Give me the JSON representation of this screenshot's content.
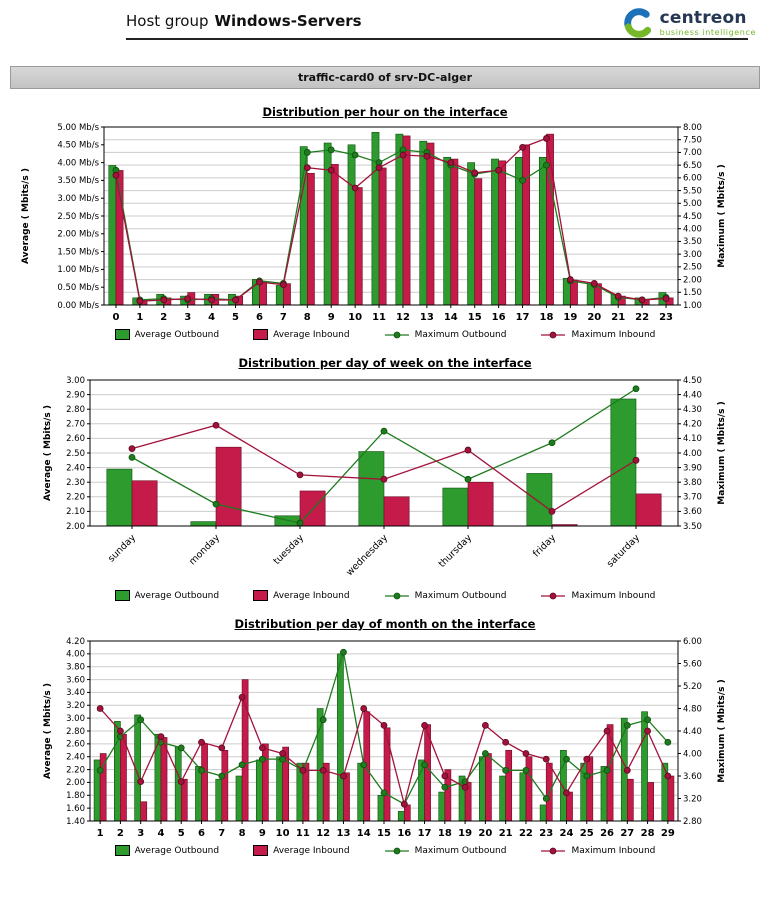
{
  "header": {
    "title_prefix": "Host group",
    "title_name": "Windows-Servers",
    "logo": {
      "brand": "centreon",
      "tagline": "business intelligence"
    }
  },
  "card": {
    "title": "traffic-card0 of srv-DC-alger"
  },
  "colors": {
    "grid": "#cccccc",
    "avg_out": "#2e9b2e",
    "avg_in": "#c41b4b",
    "max_out": "#1e7b1e",
    "max_in": "#a3123b"
  },
  "chart_data": [
    {
      "name": "per-hour",
      "type": "bar",
      "title": "Distribution per hour on the interface",
      "rotate_labels": false,
      "categories": [
        "0",
        "1",
        "2",
        "3",
        "4",
        "5",
        "6",
        "7",
        "8",
        "9",
        "10",
        "11",
        "12",
        "13",
        "14",
        "15",
        "16",
        "17",
        "18",
        "19",
        "20",
        "21",
        "22",
        "23"
      ],
      "left_axis": {
        "label": "Average ( Mbits/s )",
        "min": 0,
        "max": 5,
        "step": 0.5,
        "decimals": 2,
        "suffix": " Mb/s"
      },
      "right_axis": {
        "label": "Maximum ( Mbits/s )",
        "min": 1,
        "max": 8,
        "step": 0.5,
        "decimals": 2
      },
      "series": [
        {
          "name": "Average Outbound",
          "type": "bar",
          "axis": "left",
          "color": "#2e9b2e",
          "border": "#134d13",
          "values": [
            3.92,
            0.2,
            0.3,
            0.25,
            0.3,
            0.3,
            0.72,
            0.55,
            4.45,
            4.55,
            4.5,
            4.85,
            4.8,
            4.6,
            4.15,
            4.0,
            4.1,
            4.15,
            4.15,
            0.75,
            0.6,
            0.3,
            0.2,
            0.35
          ]
        },
        {
          "name": "Average Inbound",
          "type": "bar",
          "axis": "left",
          "color": "#c41b4b",
          "border": "#6b0b26",
          "values": [
            3.78,
            0.15,
            0.2,
            0.35,
            0.3,
            0.25,
            0.65,
            0.6,
            3.7,
            3.95,
            3.3,
            3.85,
            4.75,
            4.55,
            4.1,
            3.55,
            4.05,
            4.5,
            4.8,
            0.7,
            0.6,
            0.25,
            0.15,
            0.2
          ]
        },
        {
          "name": "Maximum Outbound",
          "type": "line",
          "axis": "right",
          "color": "#1e7b1e",
          "edge": "#0c4f0c",
          "values": [
            6.3,
            1.2,
            1.25,
            1.2,
            1.25,
            1.2,
            1.95,
            1.85,
            7.0,
            7.1,
            6.9,
            6.6,
            7.1,
            7.0,
            6.5,
            6.15,
            6.3,
            5.9,
            6.5,
            1.95,
            1.8,
            1.3,
            1.2,
            1.3
          ]
        },
        {
          "name": "Maximum Inbound",
          "type": "line",
          "axis": "right",
          "color": "#a3123b",
          "edge": "#550a20",
          "values": [
            6.1,
            1.15,
            1.2,
            1.25,
            1.2,
            1.2,
            1.9,
            1.8,
            6.4,
            6.3,
            5.6,
            6.4,
            6.9,
            6.85,
            6.6,
            6.2,
            6.3,
            7.2,
            7.55,
            2.0,
            1.85,
            1.35,
            1.2,
            1.25
          ]
        }
      ]
    },
    {
      "name": "per-day-of-week",
      "type": "bar",
      "title": "Distribution per day of week on the interface",
      "rotate_labels": true,
      "categories": [
        "sunday",
        "monday",
        "tuesday",
        "wednesday",
        "thursday",
        "friday",
        "saturday"
      ],
      "left_axis": {
        "label": "Average ( Mbits/s )",
        "min": 2.0,
        "max": 3.0,
        "step": 0.1,
        "decimals": 2
      },
      "right_axis": {
        "label": "Maximum ( Mbits/s )",
        "min": 3.5,
        "max": 4.5,
        "step": 0.1,
        "decimals": 2
      },
      "series": [
        {
          "name": "Average Outbound",
          "type": "bar",
          "axis": "left",
          "color": "#2e9b2e",
          "border": "#134d13",
          "values": [
            2.39,
            2.03,
            2.07,
            2.51,
            2.26,
            2.36,
            2.87
          ]
        },
        {
          "name": "Average Inbound",
          "type": "bar",
          "axis": "left",
          "color": "#c41b4b",
          "border": "#6b0b26",
          "values": [
            2.31,
            2.54,
            2.24,
            2.2,
            2.3,
            2.01,
            2.22
          ]
        },
        {
          "name": "Maximum Outbound",
          "type": "line",
          "axis": "right",
          "color": "#1e7b1e",
          "edge": "#0c4f0c",
          "values": [
            3.97,
            3.65,
            3.52,
            4.15,
            3.82,
            4.07,
            4.44
          ]
        },
        {
          "name": "Maximum Inbound",
          "type": "line",
          "axis": "right",
          "color": "#a3123b",
          "edge": "#550a20",
          "values": [
            4.03,
            4.19,
            3.85,
            3.82,
            4.02,
            3.6,
            3.95
          ]
        }
      ]
    },
    {
      "name": "per-day-of-month",
      "type": "bar",
      "title": "Distribution per day of month on the interface",
      "rotate_labels": false,
      "categories": [
        "1",
        "2",
        "3",
        "4",
        "5",
        "6",
        "7",
        "8",
        "9",
        "10",
        "11",
        "12",
        "13",
        "14",
        "15",
        "16",
        "17",
        "18",
        "19",
        "20",
        "21",
        "22",
        "23",
        "24",
        "25",
        "26",
        "27",
        "28",
        "29"
      ],
      "left_axis": {
        "label": "Average ( Mbits/s )",
        "min": 1.4,
        "max": 4.2,
        "step": 0.2,
        "decimals": 2
      },
      "right_axis": {
        "label": "Maximum ( Mbits/s )",
        "min": 2.8,
        "max": 6.0,
        "step": 0.4,
        "decimals": 2
      },
      "series": [
        {
          "name": "Average Outbound",
          "type": "bar",
          "axis": "left",
          "color": "#2e9b2e",
          "border": "#134d13",
          "values": [
            2.35,
            2.95,
            3.05,
            2.75,
            2.55,
            2.25,
            2.05,
            2.1,
            2.35,
            2.4,
            2.3,
            3.15,
            4.0,
            2.3,
            1.8,
            1.55,
            2.35,
            1.85,
            2.1,
            2.4,
            2.1,
            2.15,
            1.65,
            2.5,
            2.3,
            2.25,
            3.0,
            3.1,
            2.3
          ]
        },
        {
          "name": "Average Inbound",
          "type": "bar",
          "axis": "left",
          "color": "#c41b4b",
          "border": "#6b0b26",
          "values": [
            2.45,
            2.75,
            1.7,
            2.7,
            2.05,
            2.6,
            2.5,
            3.6,
            2.6,
            2.55,
            2.3,
            2.3,
            2.15,
            3.1,
            2.85,
            1.65,
            2.9,
            2.2,
            2.0,
            2.45,
            2.5,
            2.4,
            2.3,
            1.85,
            2.4,
            2.9,
            2.05,
            2.0,
            2.1
          ]
        },
        {
          "name": "Maximum Outbound",
          "type": "line",
          "axis": "right",
          "color": "#1e7b1e",
          "edge": "#0c4f0c",
          "values": [
            3.7,
            4.3,
            4.6,
            4.2,
            4.1,
            3.7,
            3.6,
            3.8,
            3.9,
            3.9,
            3.7,
            4.6,
            5.8,
            3.8,
            3.3,
            3.1,
            3.8,
            3.4,
            3.5,
            4.0,
            3.7,
            3.7,
            3.2,
            3.9,
            3.6,
            3.7,
            4.5,
            4.6,
            4.2
          ]
        },
        {
          "name": "Maximum Inbound",
          "type": "line",
          "axis": "right",
          "color": "#a3123b",
          "edge": "#550a20",
          "values": [
            4.8,
            4.4,
            3.5,
            4.3,
            3.5,
            4.2,
            4.1,
            5.0,
            4.1,
            4.0,
            3.7,
            3.7,
            3.6,
            4.8,
            4.5,
            3.1,
            4.5,
            3.6,
            3.4,
            4.5,
            4.2,
            4.0,
            3.9,
            3.3,
            3.9,
            4.4,
            3.7,
            4.4,
            3.6
          ]
        }
      ]
    }
  ]
}
